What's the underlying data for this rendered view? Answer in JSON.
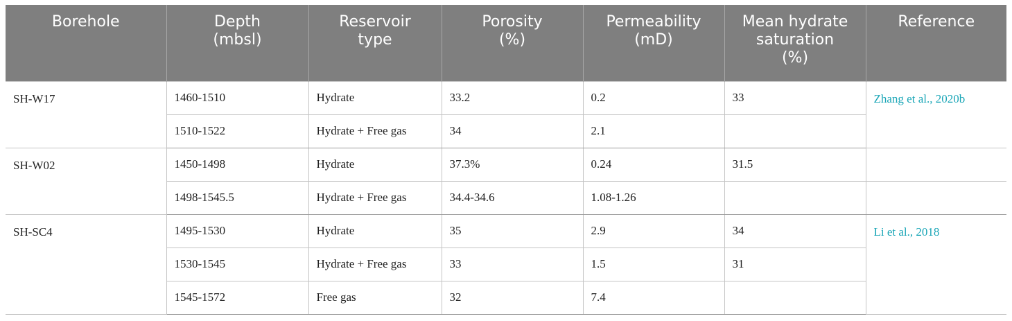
{
  "headers": [
    "Borehole",
    "Depth\n(mbsl)",
    "Reservoir\ntype",
    "Porosity\n(%)",
    "Permeability\n(mD)",
    "Mean hydrate\nsaturation\n(%)",
    "Reference"
  ],
  "groups": [
    {
      "borehole": "SH-W17",
      "reference": "Zhang et al., 2020b",
      "rows": [
        {
          "depth": "1460-1510",
          "type": "Hydrate",
          "porosity": "33.2",
          "permeability": "0.2",
          "saturation": "33"
        },
        {
          "depth": "1510-1522",
          "type": "Hydrate + Free gas",
          "porosity": "34",
          "permeability": "2.1",
          "saturation": ""
        }
      ]
    },
    {
      "borehole": "SH-W02",
      "reference": "",
      "rows": [
        {
          "depth": "1450-1498",
          "type": "Hydrate",
          "porosity": "37.3%",
          "permeability": "0.24",
          "saturation": "31.5"
        },
        {
          "depth": "1498-1545.5",
          "type": "Hydrate + Free gas",
          "porosity": "34.4-34.6",
          "permeability": "1.08-1.26",
          "saturation": ""
        }
      ]
    },
    {
      "borehole": "SH-SC4",
      "reference": "Li et al., 2018",
      "rows": [
        {
          "depth": "1495-1530",
          "type": "Hydrate",
          "porosity": "35",
          "permeability": "2.9",
          "saturation": "34"
        },
        {
          "depth": "1530-1545",
          "type": "Hydrate + Free gas",
          "porosity": "33",
          "permeability": "1.5",
          "saturation": "31"
        },
        {
          "depth": "1545-1572",
          "type": "Free gas",
          "porosity": "32",
          "permeability": "7.4",
          "saturation": ""
        }
      ]
    }
  ]
}
